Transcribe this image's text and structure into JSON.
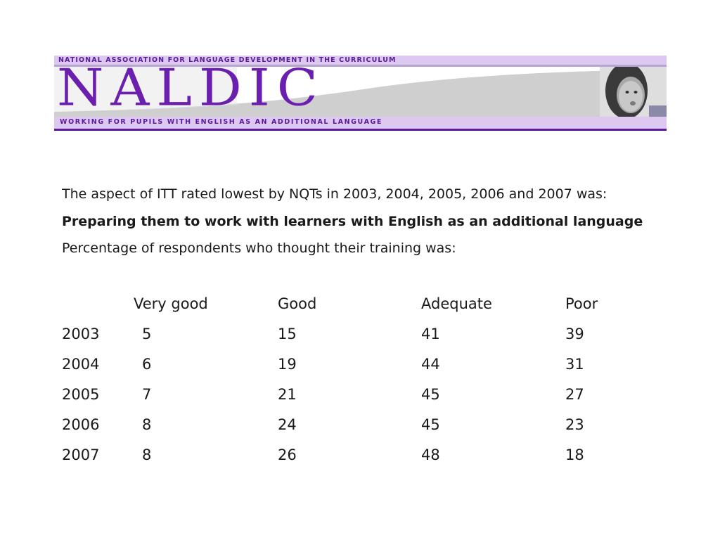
{
  "banner": {
    "top_text": "NATIONAL ASSOCIATION FOR LANGUAGE DEVELOPMENT IN THE CURRICULUM",
    "logo": "NALDIC",
    "bottom_text": "WORKING FOR PUPILS WITH ENGLISH AS AN ADDITIONAL LANGUAGE",
    "colors": {
      "purple": "#6a1fae",
      "lilac": "#dcc8f0",
      "grey": "#cfcfcf"
    }
  },
  "text": {
    "line1": "The aspect of ITT rated lowest by NQTs in 2003, 2004, 2005, 2006 and 2007  was:",
    "line2": "Preparing them to work with learners with English as an additional language",
    "line3": "Percentage of respondents who thought their training was:"
  },
  "table": {
    "headers": [
      "Very good",
      "Good",
      "Adequate",
      "Poor"
    ],
    "rows": [
      {
        "year": "2003",
        "values": [
          "5",
          "15",
          "41",
          "39"
        ]
      },
      {
        "year": "2004",
        "values": [
          "6",
          "19",
          "44",
          "31"
        ]
      },
      {
        "year": "2005",
        "values": [
          "7",
          "21",
          "45",
          "27"
        ]
      },
      {
        "year": "2006",
        "values": [
          "8",
          "24",
          "45",
          "23"
        ]
      },
      {
        "year": "2007",
        "values": [
          "8",
          "26",
          "48",
          "18"
        ]
      }
    ]
  }
}
